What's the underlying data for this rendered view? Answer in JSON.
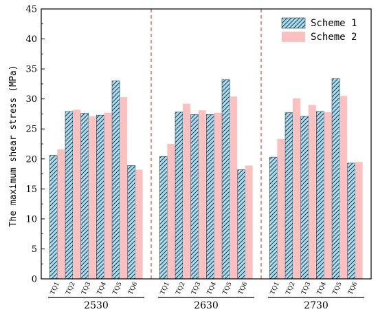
{
  "chart_data": {
    "type": "bar",
    "title": "",
    "ylabel": "The maximum shear stress (MPa)",
    "xlabel": "",
    "ylim": [
      0,
      45
    ],
    "yticks": [
      "0",
      "5",
      "10",
      "15",
      "20",
      "25",
      "30",
      "35",
      "40",
      "45"
    ],
    "groups": [
      "2530",
      "2630",
      "2730"
    ],
    "categories": [
      "TQ1",
      "TQ2",
      "TQ3",
      "TQ4",
      "TQ5",
      "TQ6"
    ],
    "series": [
      {
        "name": "Scheme 1",
        "color": "#a9dcef",
        "pattern": "diagonal-hatch",
        "values": [
          [
            20.6,
            27.9,
            27.6,
            27.3,
            33.0,
            18.9
          ],
          [
            20.4,
            27.8,
            27.4,
            27.4,
            33.2,
            18.2
          ],
          [
            20.3,
            27.7,
            27.1,
            27.9,
            33.4,
            19.3
          ]
        ]
      },
      {
        "name": "Scheme 2",
        "color": "#fbc1c1",
        "pattern": "solid",
        "values": [
          [
            21.6,
            28.2,
            27.1,
            27.7,
            30.3,
            18.2
          ],
          [
            22.5,
            29.2,
            28.1,
            27.7,
            30.4,
            18.9
          ],
          [
            23.3,
            30.1,
            29.0,
            27.8,
            30.5,
            19.5
          ]
        ]
      }
    ],
    "group_separator_color": "#e0403f",
    "grid": false,
    "legend_position": "top-right"
  }
}
